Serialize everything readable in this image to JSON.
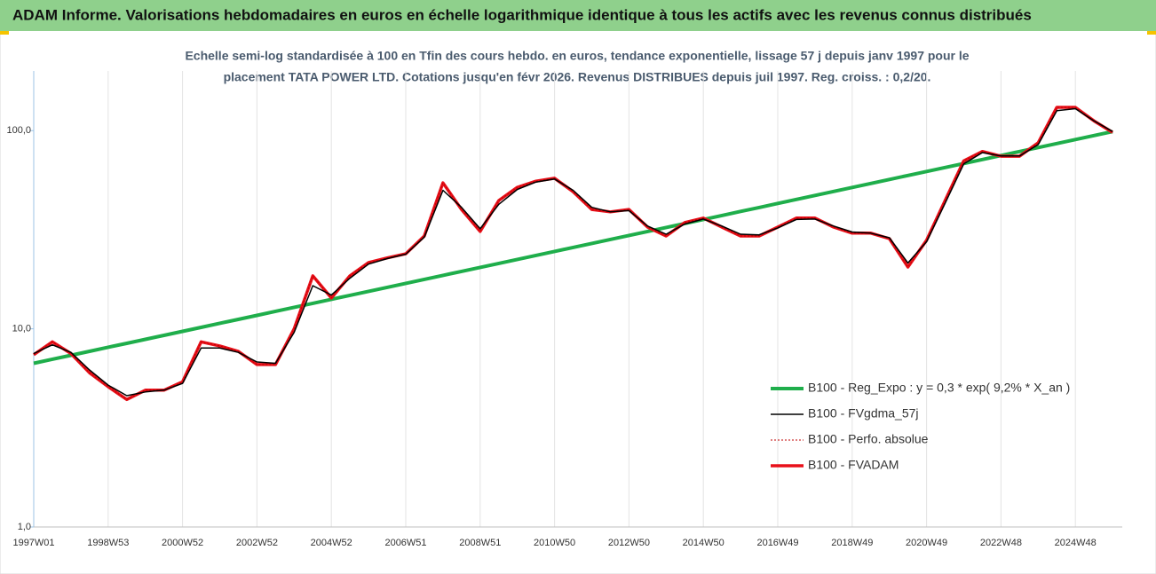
{
  "chart_data": {
    "type": "line",
    "title": "ADAM Informe. Valorisations hebdomadaires en euros en échelle logarithmique identique à tous les actifs avec les revenus connus distribués",
    "subtitle": [
      "Echelle semi-log standardisée à 100 en Tfin des cours hebdo. en euros, tendance exponentielle, lissage 57 j depuis janv 1997 pour le",
      "placement TATA POWER LTD. Cotations jusqu'en févr 2026. Revenus DISTRIBUES depuis juil 1997. Reg. croiss. : 0,2/20."
    ],
    "categories": [
      "1997W01",
      null,
      null,
      null,
      "1998W53",
      null,
      null,
      null,
      "2000W52",
      null,
      null,
      null,
      "2002W52",
      null,
      null,
      null,
      "2004W52",
      null,
      null,
      null,
      "2006W51",
      null,
      null,
      null,
      "2008W51",
      null,
      null,
      null,
      "2010W50",
      null,
      null,
      null,
      "2012W50",
      null,
      null,
      null,
      "2014W50",
      null,
      null,
      null,
      "2016W49",
      null,
      null,
      null,
      "2018W49",
      null,
      null,
      null,
      "2020W49",
      null,
      null,
      null,
      "2022W48",
      null,
      null,
      null,
      "2024W48",
      null,
      null
    ],
    "log_scale": true,
    "ylim": [
      1,
      200
    ],
    "yticks": [
      {
        "value": 1,
        "label": "1,0"
      },
      {
        "value": 10,
        "label": "10,0"
      },
      {
        "value": 100,
        "label": "100,0"
      }
    ],
    "grid": true,
    "legend_position": "right",
    "series": [
      {
        "name": "B100 - Reg_Expo : y = 0,3 * exp( 9,2% *  X_an )",
        "color": "#1fae4b",
        "line_width": 4,
        "style": "solid",
        "values": [
          6.7,
          7.02,
          7.35,
          7.7,
          8.07,
          8.45,
          8.85,
          9.27,
          9.71,
          10.17,
          10.66,
          11.16,
          11.69,
          12.25,
          12.83,
          13.44,
          14.08,
          14.75,
          15.45,
          16.18,
          16.95,
          17.76,
          18.6,
          19.48,
          20.41,
          21.38,
          22.4,
          23.46,
          24.58,
          25.74,
          26.97,
          28.25,
          29.59,
          31.0,
          32.47,
          34.01,
          35.63,
          37.32,
          39.1,
          40.95,
          42.9,
          44.94,
          47.07,
          49.31,
          51.66,
          54.11,
          56.68,
          59.38,
          62.2,
          65.15,
          68.25,
          71.49,
          74.89,
          78.45,
          82.17,
          86.08,
          90.17,
          94.45,
          98.94
        ]
      },
      {
        "name": "B100 - FVgdma_57j",
        "color": "#000000",
        "line_width": 1.5,
        "style": "solid",
        "values": [
          7.5,
          8.3,
          7.6,
          6.2,
          5.2,
          4.6,
          4.8,
          4.9,
          5.3,
          8.0,
          8.0,
          7.6,
          6.8,
          6.7,
          9.6,
          16.5,
          14.8,
          18.0,
          21.2,
          22.6,
          23.8,
          29.0,
          50.0,
          41.0,
          32.0,
          42.5,
          50.5,
          55.0,
          57.0,
          50.0,
          41.0,
          38.9,
          39.5,
          33.0,
          30.0,
          33.8,
          35.8,
          33.0,
          30.0,
          29.8,
          32.3,
          35.6,
          35.8,
          33.0,
          30.8,
          30.4,
          28.8,
          21.5,
          27.5,
          43.0,
          68.0,
          77.5,
          74.5,
          74.5,
          85.0,
          126,
          129,
          112,
          99
        ]
      },
      {
        "name": "B100 - Perfo. absolue",
        "color": "#c00000",
        "line_width": 1,
        "style": "dotted",
        "values": [
          7.4,
          8.6,
          7.5,
          6.0,
          5.1,
          4.4,
          4.9,
          4.9,
          5.4,
          8.6,
          8.2,
          7.7,
          6.6,
          6.6,
          10.0,
          18.5,
          14.3,
          18.5,
          21.6,
          22.8,
          23.9,
          29.4,
          54.5,
          40.0,
          31.0,
          44.4,
          51.8,
          55.6,
          57.5,
          49.2,
          40.0,
          38.9,
          40.0,
          32.6,
          29.4,
          34.4,
          36.2,
          32.6,
          29.4,
          29.4,
          32.6,
          36.2,
          36.2,
          32.6,
          30.4,
          30.4,
          28.5,
          20.5,
          28.0,
          44.4,
          70.4,
          78.5,
          74.3,
          74.3,
          86.9,
          131,
          131,
          112,
          98
        ]
      },
      {
        "name": "B100 - FVADAM",
        "color": "#e8101a",
        "line_width": 3.5,
        "style": "solid",
        "values": [
          7.4,
          8.6,
          7.5,
          6.0,
          5.1,
          4.4,
          4.9,
          4.9,
          5.4,
          8.6,
          8.2,
          7.7,
          6.6,
          6.6,
          10.0,
          18.5,
          14.3,
          18.5,
          21.6,
          22.8,
          23.9,
          29.4,
          54.5,
          40.0,
          31.0,
          44.4,
          51.8,
          55.6,
          57.5,
          49.2,
          40.0,
          38.9,
          40.0,
          32.6,
          29.4,
          34.4,
          36.2,
          32.6,
          29.4,
          29.4,
          32.6,
          36.2,
          36.2,
          32.6,
          30.4,
          30.4,
          28.5,
          20.5,
          28.0,
          44.4,
          70.4,
          78.5,
          74.3,
          74.3,
          86.9,
          131,
          131,
          112,
          98
        ]
      }
    ]
  }
}
